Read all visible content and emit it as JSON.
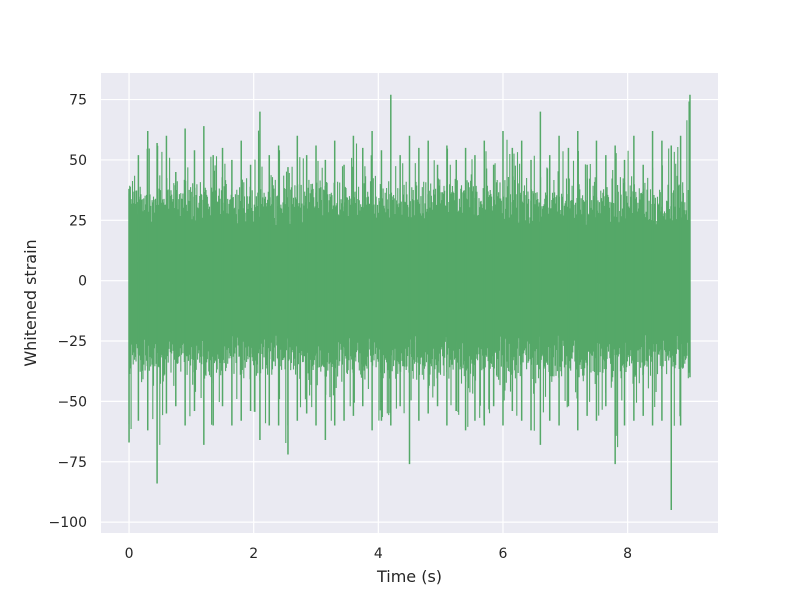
{
  "chart_data": {
    "type": "line",
    "title": "",
    "xlabel": "Time (s)",
    "ylabel": "Whitened strain",
    "xlim": [
      -0.45,
      9.45
    ],
    "ylim": [
      -104.5,
      86
    ],
    "xticks": [
      0,
      2,
      4,
      6,
      8
    ],
    "xtick_labels": [
      "0",
      "2",
      "4",
      "6",
      "8"
    ],
    "yticks": [
      -100,
      -75,
      -50,
      -25,
      0,
      25,
      50,
      75
    ],
    "ytick_labels": [
      "−100",
      "−75",
      "−50",
      "−25",
      "0",
      "25",
      "50",
      "75"
    ],
    "grid": true,
    "legend": "none",
    "series": [
      {
        "color": "#55a868",
        "x_start": 0,
        "x_end": 9.0,
        "x": [
          0,
          0.15,
          0.3,
          0.45,
          0.6,
          0.75,
          0.9,
          1.05,
          1.2,
          1.35,
          1.5,
          1.65,
          1.8,
          1.95,
          2.1,
          2.25,
          2.4,
          2.55,
          2.7,
          2.85,
          3.0,
          3.15,
          3.3,
          3.45,
          3.6,
          3.75,
          3.9,
          4.05,
          4.2,
          4.35,
          4.5,
          4.65,
          4.8,
          4.95,
          5.1,
          5.25,
          5.4,
          5.55,
          5.7,
          5.85,
          6.0,
          6.15,
          6.3,
          6.45,
          6.6,
          6.75,
          6.9,
          7.05,
          7.2,
          7.35,
          7.5,
          7.65,
          7.8,
          7.95,
          8.1,
          8.25,
          8.4,
          8.55,
          8.7,
          8.85,
          9.0
        ],
        "y_max": [
          38,
          52,
          62,
          57,
          60,
          45,
          63,
          54,
          64,
          52,
          55,
          50,
          58,
          48,
          70,
          52,
          56,
          47,
          60,
          52,
          56,
          50,
          58,
          48,
          60,
          55,
          62,
          54,
          77,
          52,
          60,
          55,
          58,
          48,
          56,
          50,
          55,
          52,
          58,
          48,
          62,
          55,
          58,
          50,
          70,
          52,
          60,
          55,
          62,
          48,
          58,
          52,
          56,
          50,
          60,
          48,
          62,
          58,
          56,
          60,
          77
        ],
        "y_min": [
          -67,
          -58,
          -62,
          -84,
          -55,
          -52,
          -60,
          -54,
          -68,
          -60,
          -52,
          -60,
          -58,
          -54,
          -66,
          -60,
          -60,
          -72,
          -58,
          -55,
          -60,
          -66,
          -60,
          -58,
          -56,
          -52,
          -62,
          -58,
          -60,
          -52,
          -76,
          -58,
          -55,
          -52,
          -60,
          -54,
          -62,
          -58,
          -60,
          -52,
          -60,
          -54,
          -58,
          -62,
          -68,
          -58,
          -60,
          -52,
          -62,
          -56,
          -58,
          -52,
          -76,
          -60,
          -58,
          -56,
          -60,
          -58,
          -95,
          -60,
          -40
        ]
      }
    ]
  }
}
